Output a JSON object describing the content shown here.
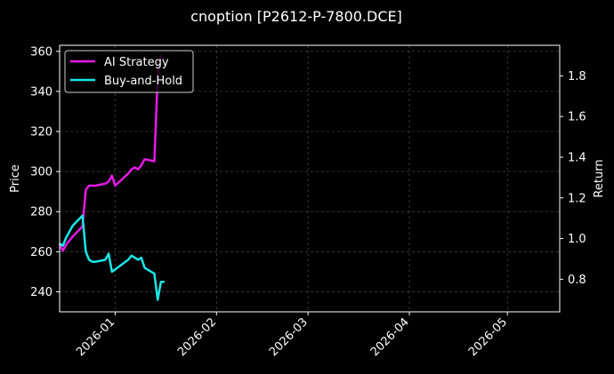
{
  "chart_data": {
    "type": "line",
    "title": "cnoption [P2612-P-7800.DCE]",
    "ylabel_left": "Price",
    "ylabel_right": "Return",
    "xlabel": "",
    "x_axis": {
      "range": [
        "2025-12-15",
        "2026-05-17"
      ],
      "ticks": [
        "2026-01",
        "2026-02",
        "2026-03",
        "2026-04",
        "2026-05"
      ],
      "tick_dates": [
        "2026-01-01",
        "2026-02-01",
        "2026-03-01",
        "2026-04-01",
        "2026-05-01"
      ]
    },
    "y_left": {
      "range": [
        230,
        363
      ],
      "ticks": [
        240,
        260,
        280,
        300,
        320,
        340,
        360
      ]
    },
    "y_right": {
      "range": [
        0.64,
        1.95
      ],
      "ticks": [
        "0.8",
        "1.0",
        "1.2",
        "1.4",
        "1.6",
        "1.8"
      ]
    },
    "grid": true,
    "legend_position": "top-left",
    "colors": {
      "ai": "#e619e6",
      "bh": "#19e6e6",
      "axes": "#ffffff",
      "grid": "#555555"
    },
    "series": [
      {
        "name": "AI Strategy",
        "axis": "right",
        "color": "#e619e6",
        "points": [
          [
            "2025-12-15",
            0.97
          ],
          [
            "2025-12-16",
            0.94
          ],
          [
            "2025-12-17",
            0.97
          ],
          [
            "2025-12-18",
            0.99
          ],
          [
            "2025-12-19",
            1.01
          ],
          [
            "2025-12-22",
            1.06
          ],
          [
            "2025-12-23",
            1.24
          ],
          [
            "2025-12-24",
            1.26
          ],
          [
            "2025-12-25",
            1.26
          ],
          [
            "2025-12-26",
            1.26
          ],
          [
            "2025-12-29",
            1.27
          ],
          [
            "2025-12-30",
            1.28
          ],
          [
            "2025-12-31",
            1.31
          ],
          [
            "2026-01-01",
            1.26
          ],
          [
            "2026-01-05",
            1.32
          ],
          [
            "2026-01-06",
            1.34
          ],
          [
            "2026-01-07",
            1.35
          ],
          [
            "2026-01-08",
            1.34
          ],
          [
            "2026-01-09",
            1.36
          ],
          [
            "2026-01-10",
            1.39
          ],
          [
            "2026-01-13",
            1.38
          ],
          [
            "2026-01-14",
            1.8
          ],
          [
            "2026-01-15",
            1.9
          ]
        ]
      },
      {
        "name": "Buy-and-Hold",
        "axis": "left",
        "color": "#19e6e6",
        "points": [
          [
            "2025-12-15",
            264
          ],
          [
            "2025-12-16",
            263
          ],
          [
            "2025-12-17",
            267
          ],
          [
            "2025-12-18",
            270
          ],
          [
            "2025-12-19",
            273
          ],
          [
            "2025-12-22",
            278
          ],
          [
            "2025-12-23",
            260
          ],
          [
            "2025-12-24",
            256
          ],
          [
            "2025-12-25",
            255
          ],
          [
            "2025-12-26",
            255
          ],
          [
            "2025-12-29",
            256
          ],
          [
            "2025-12-30",
            259
          ],
          [
            "2025-12-31",
            250
          ],
          [
            "2026-01-05",
            256
          ],
          [
            "2026-01-06",
            258
          ],
          [
            "2026-01-07",
            257
          ],
          [
            "2026-01-08",
            256
          ],
          [
            "2026-01-09",
            257
          ],
          [
            "2026-01-10",
            252
          ],
          [
            "2026-01-13",
            249
          ],
          [
            "2026-01-14",
            236
          ],
          [
            "2026-01-15",
            245
          ],
          [
            "2026-01-16",
            245
          ]
        ]
      }
    ]
  }
}
